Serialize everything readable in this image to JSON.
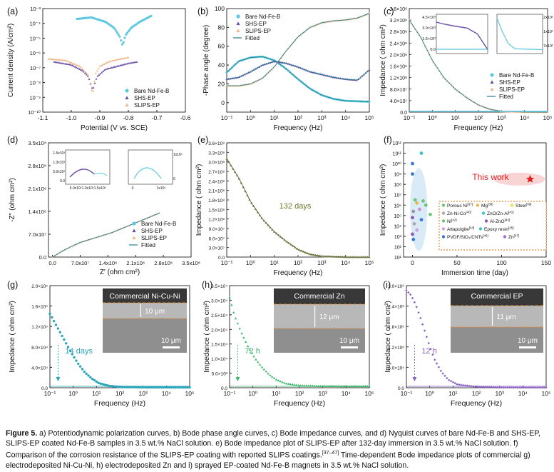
{
  "caption": {
    "label": "Figure 5.",
    "text": "a) Potentiodynamic polarization curves, b) Bode phase angle curves, c) Bode impedance curves, and d) Nyquist curves of bare Nd-Fe-B and SHS-EP, SLIPS-EP coated Nd-Fe-B samples in 3.5 wt.% NaCl solution. e) Bode impedance plot of SLIPS-EP after 132-day immersion in 3.5 wt.% NaCl solution. f) Comparison of the corrosion resistance of the SLIPS-EP coating with reported SLIPS coatings.",
    "refs": "[37–47]",
    "text2": " Time-dependent Bode impedance plots of commercial g) electrodeposited Ni-Cu-Ni, h) electrodeposited Zn and i) sprayed EP-coated Nd-Fe-B magnets in 3.5 wt.% NaCl solution."
  },
  "colors": {
    "bare": "#5ec8e0",
    "shs": "#6a4fa8",
    "slips": "#f0b98a",
    "fitted": "#1f7f8f",
    "e": "#8b8a55",
    "g": "#2aa6b8",
    "h": "#3bb86a",
    "i": "#8a62c4",
    "star": "#e02020"
  },
  "chart_data": [
    {
      "panel": "(a)",
      "type": "line",
      "xlabel": "Potential (V vs. SCE)",
      "ylabel": "Current density (A/cm²)",
      "xlim": [
        -1.1,
        -0.6
      ],
      "xticks": [
        "-1.1",
        "-1.0",
        "-0.9",
        "-0.8",
        "-0.7",
        "-0.6"
      ],
      "ylim_log": [
        -10,
        -3
      ],
      "yticks": [
        "10⁻¹⁰",
        "10⁻⁹",
        "10⁻⁸",
        "10⁻⁷",
        "10⁻⁶",
        "10⁻⁵",
        "10⁻⁴",
        "10⁻³"
      ],
      "legend": [
        "Bare Nd-Fe-B",
        "SHS-EP",
        "SLIPS-EP"
      ],
      "legend_position": "bottom-right",
      "series": [
        {
          "name": "Bare Nd-Fe-B",
          "color_key": "bare",
          "x": [
            -0.98,
            -0.93,
            -0.88,
            -0.85,
            -0.83,
            -0.82,
            -0.81,
            -0.79,
            -0.76,
            -0.72
          ],
          "log_y": [
            -3.7,
            -3.6,
            -3.9,
            -4.3,
            -4.9,
            -5.5,
            -4.8,
            -4.3,
            -3.9,
            -3.5
          ]
        },
        {
          "name": "SHS-EP",
          "color_key": "shs",
          "x": [
            -1.06,
            -1.0,
            -0.96,
            -0.94,
            -0.925,
            -0.91,
            -0.88,
            -0.84,
            -0.8,
            -0.77
          ],
          "log_y": [
            -6.6,
            -6.8,
            -7.2,
            -7.6,
            -8.5,
            -7.6,
            -7.1,
            -6.9,
            -6.7,
            -6.6
          ]
        },
        {
          "name": "SLIPS-EP",
          "color_key": "slips",
          "x": [
            -1.08,
            -1.02,
            -0.97,
            -0.94,
            -0.925,
            -0.915,
            -0.9,
            -0.87,
            -0.84,
            -0.8
          ],
          "log_y": [
            -6.4,
            -6.5,
            -6.9,
            -7.5,
            -8.8,
            -7.4,
            -6.9,
            -6.6,
            -6.45,
            -6.3
          ]
        }
      ]
    },
    {
      "panel": "(b)",
      "type": "line",
      "xlabel": "Frequency (Hz)",
      "ylabel": "-Phase angle (degree)",
      "xlim_log": [
        -1,
        5
      ],
      "xticks": [
        "10⁻¹",
        "10⁰",
        "10¹",
        "10²",
        "10³",
        "10⁴",
        "10⁵"
      ],
      "ylim": [
        -10,
        100
      ],
      "yticks": [
        "0",
        "20",
        "40",
        "60",
        "80",
        "100"
      ],
      "legend": [
        "Bare Nd-Fe-B",
        "SHS-EP",
        "SLIPS-EP",
        "Fitted"
      ],
      "legend_position": "top-left",
      "series": [
        {
          "name": "Bare Nd-Fe-B",
          "color_key": "bare",
          "log_x": [
            -1,
            -0.5,
            0,
            0.5,
            1,
            1.5,
            2,
            2.5,
            3,
            3.5,
            4,
            4.5,
            5
          ],
          "y": [
            32,
            44,
            48,
            49,
            45,
            36,
            25,
            15,
            8,
            4,
            2,
            1.5,
            1
          ]
        },
        {
          "name": "SHS-EP",
          "color_key": "shs",
          "log_x": [
            -1,
            -0.5,
            0,
            0.5,
            1,
            1.5,
            2,
            2.5,
            3,
            3.5,
            4,
            4.5,
            5
          ],
          "y": [
            25,
            27,
            33,
            40,
            44,
            42,
            38,
            33,
            30,
            27,
            25,
            24,
            35
          ]
        },
        {
          "name": "SLIPS-EP",
          "color_key": "slips",
          "log_x": [
            -1,
            -0.5,
            0,
            0.5,
            1,
            1.5,
            2,
            2.5,
            3,
            3.5,
            4,
            4.5,
            5
          ],
          "y": [
            18,
            18,
            20,
            26,
            38,
            55,
            70,
            80,
            85,
            87,
            88,
            90,
            95
          ]
        }
      ]
    },
    {
      "panel": "(c)",
      "type": "line",
      "xlabel": "Frequency (Hz)",
      "ylabel": "Impedance ( ohm cm²)",
      "xlim_log": [
        -1,
        5
      ],
      "ylim": [
        0,
        360000000.0
      ],
      "yticks": [
        "0.0",
        "4.0×10⁷",
        "8.0×10⁷",
        "1.2×10⁸",
        "1.6×10⁸",
        "2.0×10⁸",
        "2.4×10⁸",
        "2.8×10⁸",
        "3.2×10⁸",
        "3.6×10⁸"
      ],
      "legend": [
        "Bare Nd-Fe-B",
        "SHS-EP",
        "SLIPS-EP",
        "Fitted"
      ],
      "legend_position": "bottom-right",
      "inset_labels": [
        "4.5×10³",
        "3.0×10³",
        "1.5×10³",
        "0.0",
        "2x10⁵",
        "1x10⁵",
        "7x10³"
      ],
      "series": [
        {
          "name": "SLIPS-EP",
          "color_key": "slips",
          "log_x": [
            -1,
            -0.5,
            0,
            0.5,
            1,
            1.5,
            2,
            2.5,
            3,
            4,
            5
          ],
          "y": [
            320000000.0,
            260000000.0,
            180000000.0,
            120000000.0,
            80000000.0,
            50000000.0,
            25000000.0,
            10000000.0,
            3000000.0,
            400000.0,
            50000.0
          ]
        }
      ]
    },
    {
      "panel": "(d)",
      "type": "scatter",
      "xlabel": "Z' (ohm cm²)",
      "ylabel": "-Z'' (ohm cm²)",
      "xlim": [
        -10000000.0,
        350000000.0
      ],
      "xticks": [
        "0.0",
        "7.0x10⁷",
        "1.4x10⁸",
        "2.1x10⁸",
        "2.8x10⁸",
        "3.5x10⁸"
      ],
      "ylim": [
        0,
        350000000.0
      ],
      "yticks": [
        "0.0",
        "7.0x10⁷",
        "1.4x10⁸",
        "2.1x10⁸",
        "2.8x10⁸",
        "3.5x10⁸"
      ],
      "legend": [
        "Bare Nd-Fe-B",
        "SHS-EP",
        "SLIPS-EP",
        "Fitted"
      ],
      "legend_position": "bottom-right",
      "inset_labels": [
        "1.5x10³",
        "1.0x10³",
        "5.0x10²",
        "0.0",
        "5.0x10²",
        "1.0x10³",
        "1.5x10³",
        "1x10⁵",
        "0",
        "0",
        "1x10⁵"
      ],
      "series": [
        {
          "name": "SLIPS-EP",
          "color_key": "slips",
          "x": [
            0,
            30000000.0,
            70000000.0,
            110000000.0,
            150000000.0,
            190000000.0,
            230000000.0,
            270000000.0
          ],
          "y": [
            0,
            22000000.0,
            45000000.0,
            60000000.0,
            75000000.0,
            95000000.0,
            115000000.0,
            135000000.0
          ]
        }
      ]
    },
    {
      "panel": "(e)",
      "type": "line",
      "xlabel": "Frequency (Hz)",
      "ylabel": "Impedance ( ohm cm²)",
      "xlim_log": [
        -1,
        5
      ],
      "ylim": [
        0,
        360000000.0
      ],
      "yticks": [
        "0.0",
        "3.0×10⁷",
        "6.0×10⁷",
        "9.0×10⁷",
        "1.2×10⁸",
        "1.5×10⁸",
        "1.8×10⁸",
        "2.1×10⁸",
        "2.4×10⁸",
        "2.7×10⁸",
        "3.0×10⁸",
        "3.3×10⁸",
        "3.6×10⁸"
      ],
      "annotation": "132 days",
      "series": [
        {
          "name": "",
          "color_key": "e",
          "log_x": [
            -1,
            -0.5,
            0,
            0.5,
            1,
            1.5,
            2,
            2.5,
            3,
            4,
            5
          ],
          "y": [
            310000000.0,
            250000000.0,
            175000000.0,
            120000000.0,
            80000000.0,
            50000000.0,
            24000000.0,
            9000000.0,
            3000000.0,
            300000.0,
            30000.0
          ]
        }
      ]
    },
    {
      "panel": "(f)",
      "type": "scatter",
      "xlabel": "Immersion time (day)",
      "ylabel": "Impedance ( ohm cm²)",
      "xlim": [
        -10,
        150
      ],
      "xticks": [
        "0",
        "50",
        "100",
        "150"
      ],
      "ylim_log": [
        1,
        12
      ],
      "yticks": [
        "10¹",
        "10²",
        "10³",
        "10⁴",
        "10⁵",
        "10⁶",
        "10⁷",
        "10⁸",
        "10⁹",
        "10¹⁰",
        "10¹¹",
        "10¹²"
      ],
      "annotation": "This work",
      "legend": [
        "Porous Ni",
        "Mg",
        "Steel",
        "Zn-Ni-Co",
        "ZnO/Zn-Al",
        "Ni",
        "Al-ZnO",
        "Attapulgite",
        "Epoxy resin",
        "PVDF/SiO₂/CNTs",
        "Zn"
      ],
      "legend_refs": [
        "[37]",
        "[38]",
        "[39]",
        "[40]",
        "[41]",
        "[42]",
        "[43]",
        "[44]",
        "[45]",
        "[46]",
        "[47]"
      ],
      "series": [
        {
          "name": "This work",
          "color_key": "star",
          "x": [
            132
          ],
          "log_y": [
            8.5
          ]
        }
      ]
    },
    {
      "panel": "(g)",
      "type": "line",
      "xlabel": "Frequency (Hz)",
      "ylabel": "Impedance ( ohm cm²)",
      "xlim_log": [
        -1,
        5
      ],
      "ylim": [
        0,
        200000.0
      ],
      "yticks": [
        "0.0",
        "4.0×10⁴",
        "8.0×10⁴",
        "1.2×10⁵",
        "1.6×10⁵",
        "2.0×10⁵"
      ],
      "annotation": "14 days",
      "inset_title": "Commercial Ni-Cu-Ni",
      "inset_scale": "10 μm",
      "inset_thickness": "10 μm",
      "series": [
        {
          "name": "",
          "color_key": "g",
          "log_x": [
            -1,
            -0.7,
            -0.4,
            -0.1,
            0.2,
            0.5,
            0.8,
            1.1,
            1.5,
            2,
            3,
            4,
            5
          ],
          "y": [
            145000.0,
            120000.0,
            95000.0,
            70000.0,
            48000.0,
            30000.0,
            18000.0,
            9000.0,
            4000.0,
            1500.0,
            800,
            700,
            700
          ]
        }
      ]
    },
    {
      "panel": "(h)",
      "type": "line",
      "xlabel": "Frequency (Hz)",
      "ylabel": "Impedance ( ohm cm²)",
      "xlim_log": [
        -1,
        5
      ],
      "ylim": [
        0,
        35000.0
      ],
      "yticks": [
        "0.0",
        "5.0×10³",
        "1.0×10⁴",
        "1.5×10⁴",
        "2.0×10⁴",
        "2.5×10⁴",
        "3.0×10⁴",
        "3.5×10⁴"
      ],
      "annotation": "72 h",
      "inset_title": "Commercial Zn",
      "inset_scale": "10 μm",
      "inset_thickness": "12 μm",
      "series": [
        {
          "name": "",
          "color_key": "h",
          "log_x": [
            -1,
            -0.8,
            -0.5,
            -0.2,
            0.1,
            0.4,
            0.7,
            1,
            1.4,
            2,
            3,
            4,
            5
          ],
          "y": [
            31000.0,
            25000.0,
            19000.0,
            14000.0,
            10000.0,
            7000.0,
            4500.0,
            2800.0,
            1500.0,
            800,
            600,
            550,
            550
          ]
        }
      ]
    },
    {
      "panel": "(i)",
      "type": "line",
      "xlabel": "Frequency (Hz)",
      "ylabel": "Impedance ( ohm cm²)",
      "xlim_log": [
        -1,
        5
      ],
      "ylim": [
        0,
        3200000.0
      ],
      "yticks": [
        "0.0",
        "6.0×10⁵",
        "1.2×10⁶",
        "1.8×10⁶",
        "2.4×10⁶",
        "3.0×10⁶"
      ],
      "annotation": "12 h",
      "inset_title": "Commercial EP",
      "inset_scale": "10 μm",
      "inset_thickness": "11 μm",
      "series": [
        {
          "name": "",
          "color_key": "i",
          "log_x": [
            -1,
            -0.8,
            -0.6,
            -0.4,
            -0.2,
            0,
            0.2,
            0.5,
            0.8,
            1.2,
            2,
            3,
            4,
            5
          ],
          "y": [
            3050000.0,
            2900000.0,
            2600000.0,
            2200000.0,
            1750000.0,
            1300000.0,
            900000.0,
            500000.0,
            250000.0,
            100000.0,
            30000.0,
            10000.0,
            8000.0,
            8000.0
          ]
        }
      ]
    }
  ]
}
